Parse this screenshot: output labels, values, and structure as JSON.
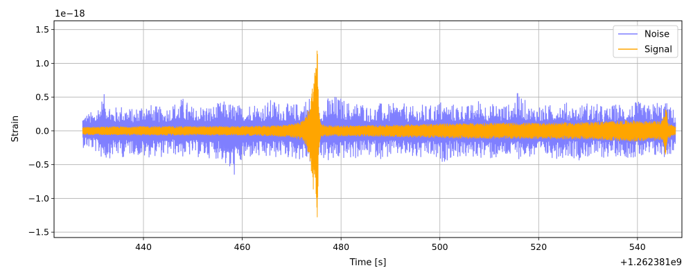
{
  "chart_data": {
    "type": "line",
    "title": "",
    "xlabel": "Time [s]",
    "ylabel": "Strain",
    "x_offset_text": "+1.262381e9",
    "y_scale_text": "1e−18",
    "xlim": [
      421.9,
      549.0
    ],
    "ylim": [
      -1.58,
      1.63
    ],
    "x_ticks": [
      440,
      460,
      480,
      500,
      520,
      540
    ],
    "x_tick_labels": [
      "440",
      "460",
      "480",
      "500",
      "520",
      "540"
    ],
    "y_ticks": [
      -1.5,
      -1.0,
      -0.5,
      0.0,
      0.5,
      1.0,
      1.5
    ],
    "y_tick_labels": [
      "−1.5",
      "−1.0",
      "−0.5",
      "0.0",
      "0.5",
      "1.0",
      "1.5"
    ],
    "grid": true,
    "legend_position": "top-right",
    "data_range_x": [
      427.7,
      547.7
    ],
    "series": [
      {
        "name": "Noise",
        "color": "#7f7fff",
        "envelope_x": [
          427.7,
          430,
          432,
          434,
          436,
          438,
          440,
          442,
          444,
          446,
          448,
          450,
          452,
          454,
          456,
          458,
          460,
          462,
          464,
          466,
          468,
          470,
          472,
          474,
          476,
          478,
          480,
          482,
          484,
          486,
          488,
          490,
          492,
          494,
          496,
          498,
          500,
          502,
          504,
          506,
          508,
          510,
          512,
          514,
          516,
          518,
          520,
          522,
          524,
          526,
          528,
          530,
          532,
          534,
          536,
          538,
          540,
          542,
          544,
          546,
          547.7
        ],
        "envelope_upper": [
          0.25,
          0.3,
          0.55,
          0.35,
          0.4,
          0.32,
          0.45,
          0.38,
          0.35,
          0.42,
          0.5,
          0.36,
          0.4,
          0.38,
          0.45,
          0.42,
          0.38,
          0.44,
          0.4,
          0.48,
          0.42,
          0.4,
          0.44,
          0.55,
          0.4,
          0.55,
          0.5,
          0.42,
          0.45,
          0.36,
          0.42,
          0.4,
          0.44,
          0.36,
          0.4,
          0.38,
          0.46,
          0.4,
          0.42,
          0.38,
          0.48,
          0.4,
          0.42,
          0.4,
          0.6,
          0.38,
          0.4,
          0.38,
          0.46,
          0.42,
          0.38,
          0.44,
          0.4,
          0.35,
          0.42,
          0.4,
          0.44,
          0.38,
          0.46,
          0.42,
          0.3
        ],
        "envelope_lower": [
          -0.25,
          -0.3,
          -0.45,
          -0.38,
          -0.4,
          -0.35,
          -0.42,
          -0.38,
          -0.4,
          -0.36,
          -0.4,
          -0.38,
          -0.42,
          -0.4,
          -0.45,
          -0.73,
          -0.48,
          -0.4,
          -0.44,
          -0.42,
          -0.4,
          -0.42,
          -0.44,
          -0.5,
          -0.4,
          -0.5,
          -0.42,
          -0.44,
          -0.4,
          -0.38,
          -0.42,
          -0.4,
          -0.38,
          -0.42,
          -0.44,
          -0.4,
          -0.5,
          -0.42,
          -0.4,
          -0.42,
          -0.4,
          -0.44,
          -0.42,
          -0.4,
          -0.42,
          -0.4,
          -0.44,
          -0.4,
          -0.42,
          -0.38,
          -0.44,
          -0.4,
          -0.42,
          -0.4,
          -0.38,
          -0.4,
          -0.42,
          -0.44,
          -0.4,
          -0.4,
          -0.3
        ]
      },
      {
        "name": "Signal",
        "color": "#ffa500",
        "envelope_x": [
          427.7,
          440,
          460,
          466,
          470,
          472,
          473,
          473.8,
          474.4,
          474.9,
          475.2,
          475.5,
          476,
          478,
          480,
          490,
          500,
          510,
          520,
          530,
          535,
          540,
          542,
          545,
          545.5,
          545.8,
          546.2,
          547.7
        ],
        "envelope_upper": [
          0.06,
          0.07,
          0.07,
          0.08,
          0.1,
          0.14,
          0.22,
          0.45,
          0.8,
          1.0,
          1.49,
          0.3,
          0.1,
          0.08,
          0.08,
          0.09,
          0.11,
          0.12,
          0.12,
          0.13,
          0.15,
          0.16,
          0.14,
          0.15,
          0.28,
          0.4,
          0.12,
          0.06
        ],
        "envelope_lower": [
          -0.06,
          -0.07,
          -0.07,
          -0.08,
          -0.1,
          -0.14,
          -0.22,
          -0.5,
          -0.9,
          -1.0,
          -1.43,
          -0.3,
          -0.1,
          -0.08,
          -0.08,
          -0.09,
          -0.11,
          -0.12,
          -0.12,
          -0.13,
          -0.15,
          -0.16,
          -0.14,
          -0.15,
          -0.3,
          -0.4,
          -0.12,
          -0.06
        ]
      }
    ]
  }
}
